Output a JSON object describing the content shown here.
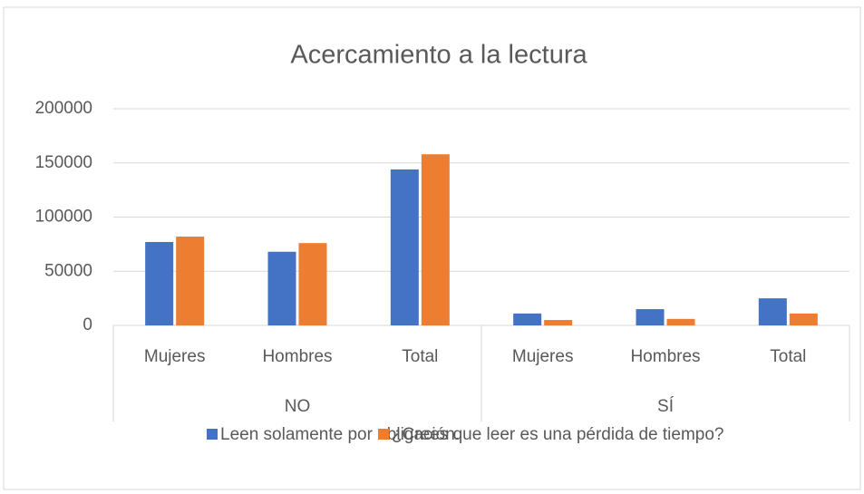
{
  "chart_data": {
    "type": "bar",
    "title": "Acercamiento a la lectura",
    "groups": [
      {
        "name": "NO",
        "categories": [
          "Mujeres",
          "Hombres",
          "Total"
        ]
      },
      {
        "name": "SÍ",
        "categories": [
          "Mujeres",
          "Hombres",
          "Total"
        ]
      }
    ],
    "series": [
      {
        "name": "Leen solamente por obligación.",
        "color": "#4472c4",
        "values": [
          77000,
          68000,
          144000,
          11000,
          15000,
          25000
        ]
      },
      {
        "name": "¿Crees que leer es una pérdida de tiempo?",
        "color": "#ed7d31",
        "values": [
          82000,
          76000,
          158000,
          5000,
          6000,
          11000
        ]
      }
    ],
    "ylim": [
      0,
      200000
    ],
    "yticks": [
      0,
      50000,
      100000,
      150000,
      200000
    ],
    "grid": true,
    "legend": "bottom"
  }
}
